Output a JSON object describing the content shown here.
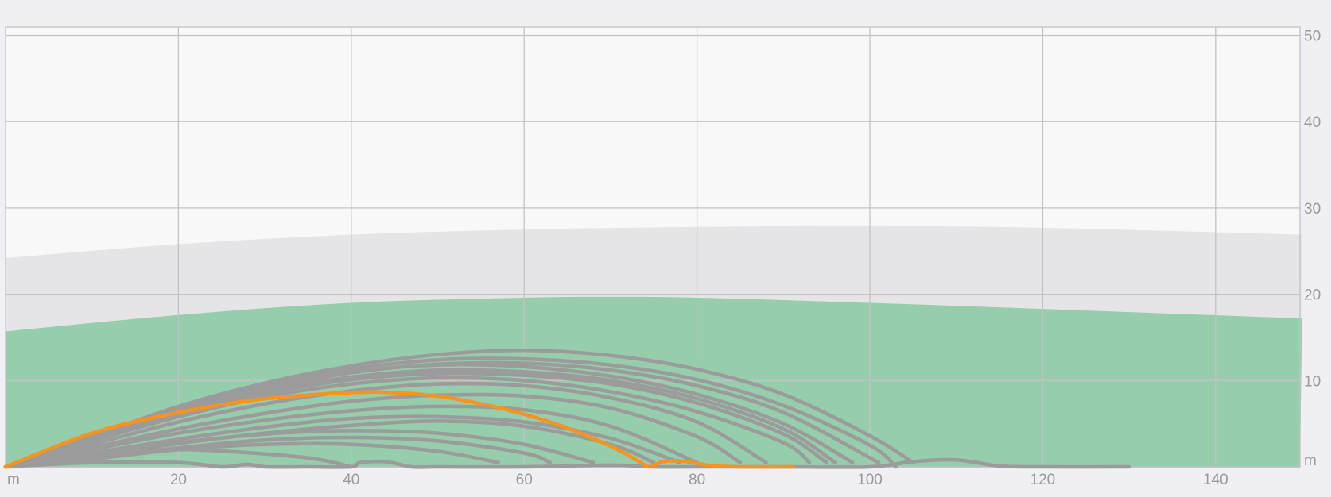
{
  "chart_data": {
    "type": "line",
    "x_unit": "m",
    "y_unit": "m",
    "xlim": [
      0,
      150
    ],
    "ylim": [
      0,
      50
    ],
    "x_ticks": [
      20,
      40,
      60,
      80,
      100,
      120,
      140
    ],
    "y_ticks": [
      10,
      20,
      30,
      40,
      50
    ],
    "grid": true,
    "colors": {
      "plot_bg": "#f8f8f8",
      "page_bg": "#f0f0f4",
      "upper_band": "#e5e5e7",
      "lower_band": "#96cdac",
      "reference_lines": "#9b9b9b",
      "highlight_line": "#f7931e",
      "grid": "#c2c2c2",
      "tick_text": "#9a9a9a"
    },
    "bands": [
      {
        "name": "upper",
        "x": [
          0,
          20,
          40,
          60,
          80,
          100,
          120,
          150
        ],
        "y": [
          24.2,
          25.8,
          26.9,
          27.5,
          27.8,
          27.9,
          27.7,
          26.9
        ]
      },
      {
        "name": "lower",
        "x": [
          0,
          20,
          40,
          60,
          70,
          80,
          100,
          120,
          150
        ],
        "y": [
          15.7,
          17.6,
          19.0,
          19.6,
          19.7,
          19.6,
          19.0,
          18.3,
          17.2
        ]
      }
    ],
    "highlight_series": {
      "x": [
        0,
        10,
        20,
        30,
        40,
        45,
        50,
        55,
        60,
        65,
        70,
        73,
        74.5,
        76,
        78,
        80,
        82,
        85,
        91
      ],
      "y": [
        0,
        3.9,
        6.3,
        7.9,
        8.6,
        8.6,
        8.2,
        7.3,
        6.1,
        4.5,
        2.4,
        0.8,
        0,
        0.6,
        0.7,
        0.4,
        0.1,
        0,
        0
      ]
    },
    "reference_series": [
      {
        "x": [
          0,
          10,
          20,
          30,
          40,
          50,
          60,
          70,
          80,
          90,
          100,
          105
        ],
        "y": [
          0,
          3.5,
          7.0,
          9.7,
          11.7,
          13.0,
          13.5,
          12.9,
          11.3,
          8.4,
          3.6,
          0.5
        ]
      },
      {
        "x": [
          0,
          10,
          20,
          30,
          40,
          50,
          60,
          70,
          80,
          90,
          100,
          103
        ],
        "y": [
          0,
          3.4,
          6.8,
          9.4,
          11.3,
          12.4,
          12.5,
          11.8,
          10.1,
          7.1,
          2.5,
          0
        ]
      },
      {
        "x": [
          0,
          10,
          20,
          30,
          40,
          50,
          60,
          70,
          80,
          90,
          101
        ],
        "y": [
          0,
          3.3,
          6.6,
          9.1,
          10.9,
          11.9,
          12.0,
          11.2,
          9.4,
          6.3,
          0.5
        ]
      },
      {
        "x": [
          0,
          10,
          20,
          30,
          40,
          50,
          60,
          70,
          80,
          90,
          98
        ],
        "y": [
          0,
          3.4,
          6.7,
          9.3,
          11.0,
          11.8,
          11.6,
          10.5,
          8.4,
          5.0,
          0.5
        ]
      },
      {
        "x": [
          0,
          10,
          20,
          30,
          40,
          50,
          60,
          70,
          80,
          90,
          96
        ],
        "y": [
          0,
          3.2,
          6.3,
          8.8,
          10.4,
          11.2,
          11.0,
          10.0,
          7.9,
          4.4,
          0.5
        ]
      },
      {
        "x": [
          0,
          10,
          20,
          30,
          40,
          50,
          60,
          70,
          80,
          90,
          95
        ],
        "y": [
          0,
          3.1,
          6.1,
          8.5,
          10.1,
          10.8,
          10.6,
          9.6,
          7.4,
          3.8,
          0.5
        ]
      },
      {
        "x": [
          0,
          10,
          20,
          30,
          40,
          50,
          60,
          70,
          80,
          90,
          93
        ],
        "y": [
          0,
          3.0,
          5.8,
          8.1,
          9.6,
          10.3,
          10.0,
          8.7,
          6.4,
          2.8,
          0.5
        ]
      },
      {
        "x": [
          0,
          10,
          20,
          30,
          40,
          50,
          60,
          70,
          80,
          88
        ],
        "y": [
          0,
          2.6,
          5.2,
          7.3,
          8.8,
          9.6,
          9.4,
          8.0,
          5.2,
          0.5
        ]
      },
      {
        "x": [
          0,
          10,
          20,
          30,
          40,
          50,
          60,
          70,
          80,
          85
        ],
        "y": [
          0,
          2.2,
          4.4,
          6.2,
          7.6,
          8.3,
          8.2,
          6.8,
          3.5,
          0.5
        ]
      },
      {
        "x": [
          0,
          10,
          20,
          30,
          40,
          50,
          60,
          70,
          80
        ],
        "y": [
          0,
          2.0,
          3.9,
          5.4,
          6.5,
          7.0,
          6.6,
          4.7,
          0.5
        ]
      },
      {
        "x": [
          0,
          10,
          20,
          30,
          40,
          50,
          60,
          70,
          78
        ],
        "y": [
          0,
          1.6,
          3.2,
          4.6,
          5.6,
          5.8,
          5.2,
          3.3,
          0.5
        ]
      },
      {
        "x": [
          0,
          10,
          20,
          30,
          40,
          50,
          60,
          70,
          75
        ],
        "y": [
          0,
          1.3,
          2.7,
          3.9,
          4.8,
          5.3,
          4.7,
          2.6,
          0.5
        ]
      },
      {
        "x": [
          0,
          10,
          20,
          30,
          40,
          50,
          60,
          68
        ],
        "y": [
          0,
          1.4,
          2.8,
          3.8,
          4.2,
          3.9,
          2.6,
          0.5
        ]
      },
      {
        "x": [
          0,
          10,
          20,
          30,
          40,
          50,
          60,
          63
        ],
        "y": [
          0,
          1.1,
          2.2,
          3.1,
          3.4,
          3.0,
          1.6,
          0.5
        ]
      },
      {
        "x": [
          0,
          10,
          20,
          30,
          40,
          50,
          57
        ],
        "y": [
          0,
          0.9,
          2.0,
          2.6,
          2.6,
          1.8,
          0.5
        ]
      },
      {
        "x": [
          0,
          10,
          20,
          30,
          36,
          40
        ],
        "y": [
          0,
          1.4,
          2.0,
          1.5,
          0.9,
          0
        ]
      },
      {
        "x": [
          0,
          10,
          20,
          25,
          28,
          30,
          35,
          40,
          41,
          44,
          47,
          50,
          60,
          70,
          75,
          80,
          90,
          100,
          105,
          110,
          115,
          120,
          130
        ],
        "y": [
          0,
          0.5,
          0.5,
          0,
          0.3,
          0,
          0,
          0,
          0.5,
          0.6,
          0,
          0,
          0,
          0.2,
          0,
          0,
          0,
          0,
          0.6,
          0.8,
          0.1,
          0,
          0
        ]
      }
    ]
  }
}
